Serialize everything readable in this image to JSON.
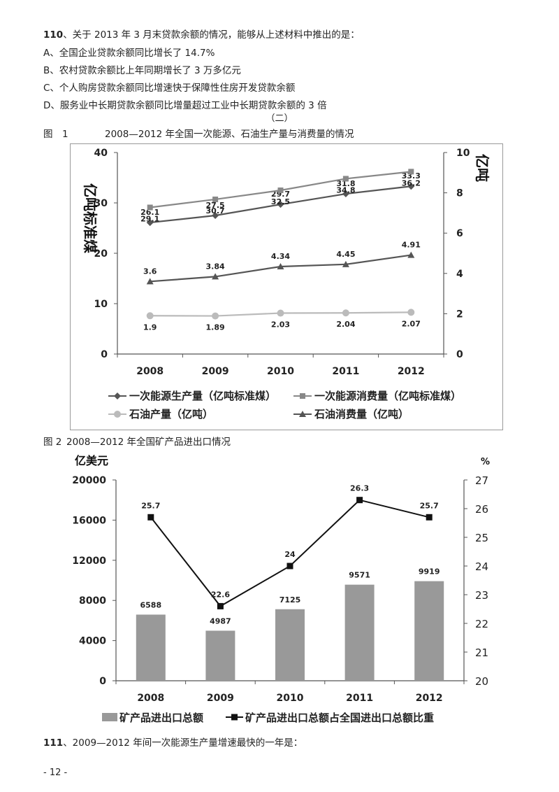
{
  "q110": {
    "num": "110",
    "stem": "、关于 2013 年 3 月末贷款余额的情况，能够从上述材料中推出的是：",
    "options": [
      "A、全国企业贷款余额同比增长了 14.7%",
      "B、农村贷款余额比上年同期增长了 3 万多亿元",
      "C、个人购房贷款余额同比增速快于保障性住房开发贷款余额",
      "D、服务业中长期贷款余额同比增量超过工业中长期贷款余额的 3 倍"
    ]
  },
  "section_label": "（二）",
  "figure1": {
    "label": "图　1",
    "title": "2008—2012 年全国一次能源、石油生产量与消费量的情况"
  },
  "figure2": {
    "label": "图 2",
    "title": "2008—2012 年全国矿产品进出口情况"
  },
  "q111": {
    "num": "111",
    "stem": "、2009—2012 年间一次能源生产量增速最快的一年是："
  },
  "page_number": "- 12 -",
  "chart_data": [
    {
      "type": "line",
      "categories": [
        "2008",
        "2009",
        "2010",
        "2011",
        "2012"
      ],
      "ylabel": "亿吨标准煤",
      "ylabel_right": "亿吨",
      "ylim": [
        0,
        40
      ],
      "yticks": [
        0,
        10,
        20,
        30,
        40
      ],
      "ylim_right": [
        0,
        10
      ],
      "yticks_right": [
        0,
        2,
        4,
        6,
        8,
        10
      ],
      "grid": false,
      "legend": "bottom",
      "series": [
        {
          "name": "一次能源生产量（亿吨标准煤）",
          "axis": "left",
          "marker": "diamond",
          "color": "#555555",
          "values": [
            26.1,
            27.5,
            29.7,
            31.8,
            33.3
          ],
          "labels": [
            "26.1",
            "27.5",
            "29.7",
            "31.8",
            "33.3"
          ]
        },
        {
          "name": "一次能源消费量（亿吨标准煤）",
          "axis": "left",
          "marker": "square",
          "color": "#888888",
          "values": [
            29.1,
            30.7,
            32.5,
            34.8,
            36.2
          ],
          "labels": [
            "29.1",
            "30.7",
            "32.5",
            "34.8",
            "36.2"
          ]
        },
        {
          "name": "石油产量（亿吨）",
          "axis": "right",
          "marker": "circle",
          "color": "#bbbbbb",
          "values": [
            1.9,
            1.89,
            2.03,
            2.04,
            2.07
          ],
          "labels": [
            "1.9",
            "1.89",
            "2.03",
            "2.04",
            "2.07"
          ]
        },
        {
          "name": "石油消费量（亿吨）",
          "axis": "right",
          "marker": "triangle",
          "color": "#555555",
          "values": [
            3.6,
            3.84,
            4.34,
            4.45,
            4.91
          ],
          "labels": [
            "3.6",
            "3.84",
            "4.34",
            "4.45",
            "4.91"
          ]
        }
      ]
    },
    {
      "type": "bar",
      "categories": [
        "2008",
        "2009",
        "2010",
        "2011",
        "2012"
      ],
      "ylabel": "亿美元",
      "ylabel_right": "%",
      "ylim": [
        0,
        20000
      ],
      "yticks": [
        0,
        4000,
        8000,
        12000,
        16000,
        20000
      ],
      "ylim_right": [
        20,
        27
      ],
      "yticks_right": [
        20,
        21,
        22,
        23,
        24,
        25,
        26,
        27
      ],
      "grid": false,
      "legend": "bottom",
      "series": [
        {
          "name": "矿产品进出口总额",
          "type": "bar",
          "axis": "left",
          "color": "#999999",
          "values": [
            6588,
            4987,
            7125,
            9571,
            9919
          ],
          "labels": [
            "6588",
            "4987",
            "7125",
            "9571",
            "9919"
          ]
        },
        {
          "name": "矿产品进出口总额占全国进出口总额比重",
          "type": "line",
          "axis": "right",
          "marker": "square",
          "color": "#111111",
          "values": [
            25.7,
            22.6,
            24,
            26.3,
            25.7
          ],
          "labels": [
            "25.7",
            "22.6",
            "24",
            "26.3",
            "25.7"
          ]
        }
      ]
    }
  ]
}
